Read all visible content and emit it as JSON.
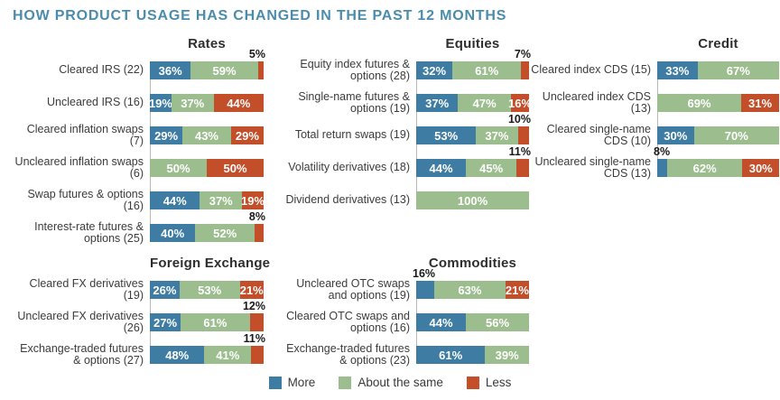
{
  "title": "HOW PRODUCT USAGE HAS CHANGED IN THE PAST 12 MONTHS",
  "title_color": "#4b8cad",
  "chart_data": {
    "type": "bar",
    "orientation": "horizontal",
    "stacked": true,
    "unit": "%",
    "legend_position": "bottom",
    "series": [
      {
        "name": "More",
        "color": "#3e7ca4"
      },
      {
        "name": "About the same",
        "color": "#9cbd8e"
      },
      {
        "name": "Less",
        "color": "#c24e2a"
      }
    ],
    "groups": [
      {
        "id": "rates",
        "title": "Rates",
        "bars": [
          {
            "category": "Cleared IRS (22)",
            "segments": [
              {
                "series": "More",
                "pct": 36,
                "label_position": "inside"
              },
              {
                "series": "About the same",
                "pct": 59,
                "label_position": "inside"
              },
              {
                "series": "Less",
                "pct": 5,
                "label_position": "above"
              }
            ]
          },
          {
            "category": "Uncleared IRS (16)",
            "segments": [
              {
                "series": "More",
                "pct": 19,
                "label_position": "inside"
              },
              {
                "series": "About the same",
                "pct": 37,
                "label_position": "inside"
              },
              {
                "series": "Less",
                "pct": 44,
                "label_position": "inside"
              }
            ]
          },
          {
            "category": "Cleared inflation swaps (7)",
            "segments": [
              {
                "series": "More",
                "pct": 29,
                "label_position": "inside"
              },
              {
                "series": "About the same",
                "pct": 43,
                "label_position": "inside"
              },
              {
                "series": "Less",
                "pct": 29,
                "label_position": "inside"
              }
            ]
          },
          {
            "category": "Uncleared inflation swaps (6)",
            "segments": [
              {
                "series": "About the same",
                "pct": 50,
                "label_position": "inside"
              },
              {
                "series": "Less",
                "pct": 50,
                "label_position": "inside"
              }
            ]
          },
          {
            "category": "Swap futures & options (16)",
            "segments": [
              {
                "series": "More",
                "pct": 44,
                "label_position": "inside"
              },
              {
                "series": "About the same",
                "pct": 37,
                "label_position": "inside"
              },
              {
                "series": "Less",
                "pct": 19,
                "label_position": "inside"
              }
            ]
          },
          {
            "category": "Interest-rate futures & options (25)",
            "segments": [
              {
                "series": "More",
                "pct": 40,
                "label_position": "inside"
              },
              {
                "series": "About the same",
                "pct": 52,
                "label_position": "inside"
              },
              {
                "series": "Less",
                "pct": 8,
                "label_position": "above"
              }
            ]
          }
        ]
      },
      {
        "id": "equities",
        "title": "Equities",
        "bars": [
          {
            "category": "Equity index futures & options (28)",
            "segments": [
              {
                "series": "More",
                "pct": 32,
                "label_position": "inside"
              },
              {
                "series": "About the same",
                "pct": 61,
                "label_position": "inside"
              },
              {
                "series": "Less",
                "pct": 7,
                "label_position": "above"
              }
            ]
          },
          {
            "category": "Single-name futures & options (19)",
            "segments": [
              {
                "series": "More",
                "pct": 37,
                "label_position": "inside"
              },
              {
                "series": "About the same",
                "pct": 47,
                "label_position": "inside"
              },
              {
                "series": "Less",
                "pct": 16,
                "label_position": "inside"
              }
            ]
          },
          {
            "category": "Total return swaps (19)",
            "segments": [
              {
                "series": "More",
                "pct": 53,
                "label_position": "inside"
              },
              {
                "series": "About the same",
                "pct": 37,
                "label_position": "inside"
              },
              {
                "series": "Less",
                "pct": 10,
                "label_position": "above"
              }
            ]
          },
          {
            "category": "Volatility derivatives (18)",
            "segments": [
              {
                "series": "More",
                "pct": 44,
                "label_position": "inside"
              },
              {
                "series": "About the same",
                "pct": 45,
                "label_position": "inside"
              },
              {
                "series": "Less",
                "pct": 11,
                "label_position": "above"
              }
            ]
          },
          {
            "category": "Dividend derivatives (13)",
            "segments": [
              {
                "series": "About the same",
                "pct": 100,
                "label_position": "inside"
              }
            ]
          }
        ]
      },
      {
        "id": "credit",
        "title": "Credit",
        "bars": [
          {
            "category": "Cleared index CDS (15)",
            "segments": [
              {
                "series": "More",
                "pct": 33,
                "label_position": "inside"
              },
              {
                "series": "About the same",
                "pct": 67,
                "label_position": "inside"
              }
            ]
          },
          {
            "category": "Uncleared index CDS (13)",
            "segments": [
              {
                "series": "About the same",
                "pct": 69,
                "label_position": "inside"
              },
              {
                "series": "Less",
                "pct": 31,
                "label_position": "inside"
              }
            ]
          },
          {
            "category": "Cleared single-name CDS (10)",
            "segments": [
              {
                "series": "More",
                "pct": 30,
                "label_position": "inside"
              },
              {
                "series": "About the same",
                "pct": 70,
                "label_position": "inside"
              }
            ]
          },
          {
            "category": "Uncleared single-name CDS (13)",
            "segments": [
              {
                "series": "More",
                "pct": 8,
                "label_position": "above"
              },
              {
                "series": "About the same",
                "pct": 62,
                "label_position": "inside"
              },
              {
                "series": "Less",
                "pct": 30,
                "label_position": "inside"
              }
            ]
          }
        ]
      },
      {
        "id": "foreign-exchange",
        "title": "Foreign Exchange",
        "bars": [
          {
            "category": "Cleared FX derivatives (19)",
            "segments": [
              {
                "series": "More",
                "pct": 26,
                "label_position": "inside"
              },
              {
                "series": "About the same",
                "pct": 53,
                "label_position": "inside"
              },
              {
                "series": "Less",
                "pct": 21,
                "label_position": "inside"
              }
            ]
          },
          {
            "category": "Uncleared FX derivatives (26)",
            "segments": [
              {
                "series": "More",
                "pct": 27,
                "label_position": "inside"
              },
              {
                "series": "About the same",
                "pct": 61,
                "label_position": "inside"
              },
              {
                "series": "Less",
                "pct": 12,
                "label_position": "above"
              }
            ]
          },
          {
            "category": "Exchange-traded futures & options (27)",
            "segments": [
              {
                "series": "More",
                "pct": 48,
                "label_position": "inside"
              },
              {
                "series": "About the same",
                "pct": 41,
                "label_position": "inside"
              },
              {
                "series": "Less",
                "pct": 11,
                "label_position": "above"
              }
            ]
          }
        ]
      },
      {
        "id": "commodities",
        "title": "Commodities",
        "bars": [
          {
            "category": "Uncleared OTC swaps and options (19)",
            "segments": [
              {
                "series": "More",
                "pct": 16,
                "label_position": "above"
              },
              {
                "series": "About the same",
                "pct": 63,
                "label_position": "inside"
              },
              {
                "series": "Less",
                "pct": 21,
                "label_position": "inside"
              }
            ]
          },
          {
            "category": "Cleared OTC swaps and options (16)",
            "segments": [
              {
                "series": "More",
                "pct": 44,
                "label_position": "inside"
              },
              {
                "series": "About the same",
                "pct": 56,
                "label_position": "inside"
              }
            ]
          },
          {
            "category": "Exchange-traded futures & options (23)",
            "segments": [
              {
                "series": "More",
                "pct": 61,
                "label_position": "inside"
              },
              {
                "series": "About the same",
                "pct": 39,
                "label_position": "inside"
              }
            ]
          }
        ]
      }
    ]
  }
}
